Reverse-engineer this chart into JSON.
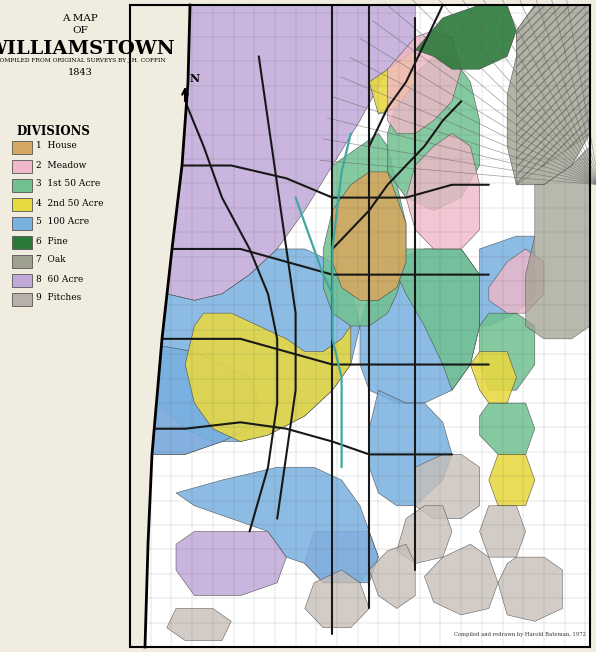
{
  "title_line1": "A MAP",
  "title_line2": "OF",
  "title_line3": "WILLIAMSTOWN",
  "title_line4": "COMPILED FROM ORIGINAL SURVEYS BY J.H. COFFIN",
  "title_line5": "1843",
  "legend_title": "DIVISIONS",
  "legend_items": [
    {
      "number": "1",
      "label": "House",
      "color": "#d4a860"
    },
    {
      "number": "2",
      "label": "Meadow",
      "color": "#f0b8c8"
    },
    {
      "number": "3",
      "label": "1st 50 Acre",
      "color": "#70c090"
    },
    {
      "number": "4",
      "label": "2nd 50 Acre",
      "color": "#e8d840"
    },
    {
      "number": "5",
      "label": "100 Acre",
      "color": "#78b0e0"
    },
    {
      "number": "6",
      "label": "Pine",
      "color": "#2a7a38"
    },
    {
      "number": "7",
      "label": "Oak",
      "color": "#a0a090"
    },
    {
      "number": "8",
      "label": "60 Acre",
      "color": "#c0a8d8"
    },
    {
      "number": "9",
      "label": "Pitches",
      "color": "#b8b0a8"
    }
  ],
  "figure_bg": "#f0ece0",
  "map_bg": "#ffffff",
  "credit": "Compiled and redrawn by Harold Bateman, 1972"
}
